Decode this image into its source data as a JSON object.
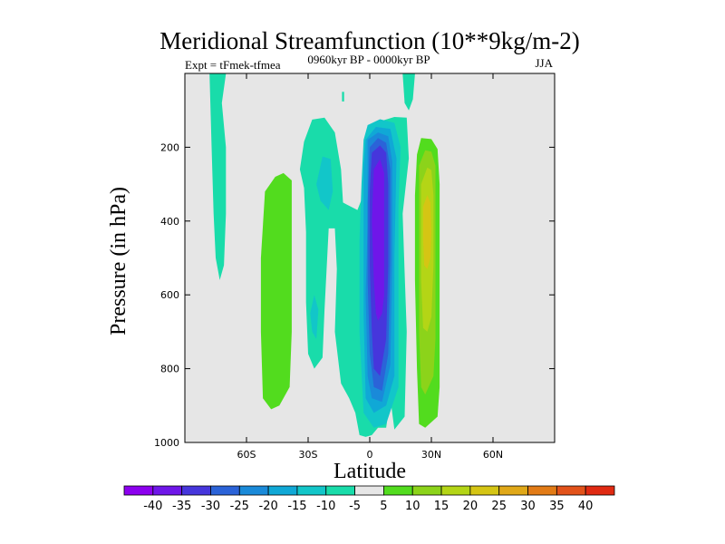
{
  "chart_data": {
    "type": "contour",
    "title": "Meridional Streamfunction (10**9kg/m-2)",
    "left_label": "Expt = tFmek-tfmea",
    "center_label": "0960kyr BP - 0000kyr BP",
    "right_label": "JJA",
    "xlabel": "Latitude",
    "ylabel": "Pressure (in hPa)",
    "xlim": [
      -90,
      90
    ],
    "ylim": [
      1000,
      0
    ],
    "x_ticks": [
      {
        "value": -60,
        "label": "60S"
      },
      {
        "value": -30,
        "label": "30S"
      },
      {
        "value": 0,
        "label": "0"
      },
      {
        "value": 30,
        "label": "30N"
      },
      {
        "value": 60,
        "label": "60N"
      }
    ],
    "y_ticks": [
      {
        "value": 200,
        "label": "200"
      },
      {
        "value": 400,
        "label": "400"
      },
      {
        "value": 600,
        "label": "600"
      },
      {
        "value": 800,
        "label": "800"
      },
      {
        "value": 1000,
        "label": "1000"
      }
    ],
    "colorbar": {
      "labels": [
        "-40",
        "-35",
        "-30",
        "-25",
        "-20",
        "-15",
        "-10",
        "-5",
        "5",
        "10",
        "15",
        "20",
        "25",
        "30",
        "35",
        "40"
      ],
      "colors": [
        "#8c00ef",
        "#6f16e9",
        "#4636dc",
        "#2b63d8",
        "#1a8ad9",
        "#10a8d6",
        "#12c6c9",
        "#19dcaa",
        "#e6e6e6",
        "#52dc1e",
        "#8cd31a",
        "#b4d516",
        "#d5c514",
        "#e0a818",
        "#e27b16",
        "#e2521a",
        "#e02a12"
      ]
    },
    "contours": [
      {
        "name": "contour-sh-strip-minus5",
        "level": -5,
        "points": [
          [
            -78,
            1
          ],
          [
            -70,
            1
          ],
          [
            -72,
            80
          ],
          [
            -70,
            200
          ],
          [
            -70,
            380
          ],
          [
            -71,
            520
          ],
          [
            -73,
            560
          ],
          [
            -75,
            500
          ],
          [
            -76,
            380
          ],
          [
            -77,
            200
          ]
        ]
      },
      {
        "name": "contour-sh-green-plus5",
        "level": 5,
        "points": [
          [
            -51,
            320
          ],
          [
            -46,
            280
          ],
          [
            -42,
            270
          ],
          [
            -38,
            290
          ],
          [
            -38,
            500
          ],
          [
            -38,
            700
          ],
          [
            -39,
            850
          ],
          [
            -44,
            900
          ],
          [
            -48,
            910
          ],
          [
            -52,
            880
          ],
          [
            -53,
            700
          ],
          [
            -53,
            500
          ]
        ]
      },
      {
        "name": "contour-sh-cell-minus5",
        "level": -5,
        "points": [
          [
            -34,
            260
          ],
          [
            -32,
            185
          ],
          [
            -28,
            125
          ],
          [
            -22,
            120
          ],
          [
            -17,
            160
          ],
          [
            -14,
            260
          ],
          [
            -13,
            350
          ],
          [
            -6,
            370
          ],
          [
            -1,
            300
          ],
          [
            -1,
            140
          ],
          [
            12,
            118
          ],
          [
            18,
            120
          ],
          [
            19,
            230
          ],
          [
            16,
            380
          ],
          [
            17,
            540
          ],
          [
            18,
            700
          ],
          [
            17,
            930
          ],
          [
            12,
            965
          ],
          [
            10,
            880
          ],
          [
            8,
            960
          ],
          [
            4,
            960
          ],
          [
            1,
            980
          ],
          [
            -2,
            985
          ],
          [
            -5,
            980
          ],
          [
            -7,
            920
          ],
          [
            -10,
            880
          ],
          [
            -14,
            840
          ],
          [
            -17,
            700
          ],
          [
            -16,
            530
          ],
          [
            -17,
            420
          ],
          [
            -20,
            420
          ],
          [
            -22,
            640
          ],
          [
            -23,
            770
          ],
          [
            -27,
            800
          ],
          [
            -30,
            760
          ],
          [
            -31,
            620
          ],
          [
            -31,
            430
          ],
          [
            -32,
            310
          ]
        ]
      },
      {
        "name": "contour-sh-cell-minus10",
        "level": -10,
        "points": [
          [
            -26,
            300
          ],
          [
            -23,
            225
          ],
          [
            -19,
            232
          ],
          [
            -18,
            320
          ],
          [
            -20,
            370
          ],
          [
            -24,
            345
          ]
        ]
      },
      {
        "name": "contour-sh-cell-minus10-low",
        "level": -10,
        "points": [
          [
            -29,
            650
          ],
          [
            -27,
            600
          ],
          [
            -25,
            640
          ],
          [
            -26,
            720
          ],
          [
            -28,
            700
          ]
        ]
      },
      {
        "name": "contour-nh-strip-minus5",
        "level": -5,
        "points": [
          [
            16,
            1
          ],
          [
            22,
            1
          ],
          [
            21,
            70
          ],
          [
            19,
            100
          ],
          [
            17,
            80
          ]
        ]
      },
      {
        "name": "contour-eq-blip-minus5",
        "level": -5,
        "points": [
          [
            -13.5,
            50
          ],
          [
            -12.5,
            50
          ],
          [
            -12.5,
            76
          ],
          [
            -13.5,
            76
          ]
        ]
      },
      {
        "name": "contour-core-minus10",
        "level": -10,
        "points": [
          [
            -3,
            180
          ],
          [
            -1,
            140
          ],
          [
            5,
            124
          ],
          [
            12,
            134
          ],
          [
            15,
            200
          ],
          [
            14,
            360
          ],
          [
            14,
            600
          ],
          [
            14,
            850
          ],
          [
            11,
            900
          ],
          [
            8,
            950
          ],
          [
            2,
            960
          ],
          [
            -3,
            920
          ],
          [
            -5,
            700
          ],
          [
            -5,
            450
          ],
          [
            -4,
            300
          ]
        ]
      },
      {
        "name": "contour-core-minus15",
        "level": -15,
        "points": [
          [
            -2,
            180
          ],
          [
            3,
            145
          ],
          [
            10,
            150
          ],
          [
            13,
            230
          ],
          [
            12,
            500
          ],
          [
            12,
            820
          ],
          [
            8,
            900
          ],
          [
            2,
            920
          ],
          [
            -2,
            880
          ],
          [
            -3,
            650
          ],
          [
            -3,
            400
          ],
          [
            -3,
            260
          ]
        ]
      },
      {
        "name": "contour-core-minus20",
        "level": -20,
        "points": [
          [
            -1,
            180
          ],
          [
            4,
            160
          ],
          [
            9,
            170
          ],
          [
            11,
            240
          ],
          [
            11,
            500
          ],
          [
            10,
            790
          ],
          [
            6,
            890
          ],
          [
            1,
            880
          ],
          [
            -1,
            820
          ],
          [
            -2,
            600
          ],
          [
            -1,
            400
          ]
        ]
      },
      {
        "name": "contour-core-minus25",
        "level": -25,
        "points": [
          [
            0,
            200
          ],
          [
            4,
            175
          ],
          [
            8,
            188
          ],
          [
            10,
            260
          ],
          [
            10,
            500
          ],
          [
            9,
            760
          ],
          [
            6,
            860
          ],
          [
            2,
            850
          ],
          [
            0,
            760
          ],
          [
            -1,
            560
          ],
          [
            -1,
            350
          ]
        ]
      },
      {
        "name": "contour-core-minus30",
        "level": -30,
        "points": [
          [
            1,
            215
          ],
          [
            5,
            195
          ],
          [
            8,
            215
          ],
          [
            9,
            300
          ],
          [
            9,
            520
          ],
          [
            8,
            720
          ],
          [
            5,
            820
          ],
          [
            2,
            800
          ],
          [
            1,
            700
          ],
          [
            0,
            520
          ],
          [
            0,
            320
          ]
        ]
      },
      {
        "name": "contour-core-minus35",
        "level": -35,
        "points": [
          [
            2,
            260
          ],
          [
            5,
            232
          ],
          [
            7,
            270
          ],
          [
            7,
            420
          ],
          [
            7,
            600
          ],
          [
            6,
            650
          ],
          [
            4,
            670
          ],
          [
            3,
            650
          ],
          [
            2,
            560
          ],
          [
            1,
            400
          ]
        ]
      },
      {
        "name": "contour-nh-cell-plus5",
        "level": 5,
        "points": [
          [
            23,
            220
          ],
          [
            25,
            175
          ],
          [
            30,
            178
          ],
          [
            33,
            205
          ],
          [
            34,
            300
          ],
          [
            34,
            500
          ],
          [
            34,
            700
          ],
          [
            34,
            850
          ],
          [
            33,
            930
          ],
          [
            27,
            960
          ],
          [
            24,
            950
          ],
          [
            23,
            800
          ],
          [
            22,
            560
          ],
          [
            22,
            330
          ]
        ]
      },
      {
        "name": "contour-nh-cell-plus10",
        "level": 10,
        "points": [
          [
            24,
            250
          ],
          [
            27,
            208
          ],
          [
            30,
            212
          ],
          [
            32,
            250
          ],
          [
            32,
            500
          ],
          [
            32,
            720
          ],
          [
            31,
            820
          ],
          [
            27,
            870
          ],
          [
            25,
            850
          ],
          [
            24,
            700
          ],
          [
            24,
            450
          ]
        ]
      },
      {
        "name": "contour-nh-cell-plus15",
        "level": 15,
        "points": [
          [
            25,
            300
          ],
          [
            28,
            255
          ],
          [
            30,
            262
          ],
          [
            31,
            330
          ],
          [
            31,
            520
          ],
          [
            30,
            660
          ],
          [
            28,
            700
          ],
          [
            26,
            690
          ],
          [
            25,
            560
          ],
          [
            25,
            420
          ]
        ]
      },
      {
        "name": "contour-nh-cell-plus20",
        "level": 20,
        "points": [
          [
            26,
            360
          ],
          [
            28,
            330
          ],
          [
            29.5,
            350
          ],
          [
            30,
            430
          ],
          [
            29.5,
            500
          ],
          [
            28,
            530
          ],
          [
            26.5,
            520
          ],
          [
            26,
            450
          ]
        ]
      }
    ]
  }
}
